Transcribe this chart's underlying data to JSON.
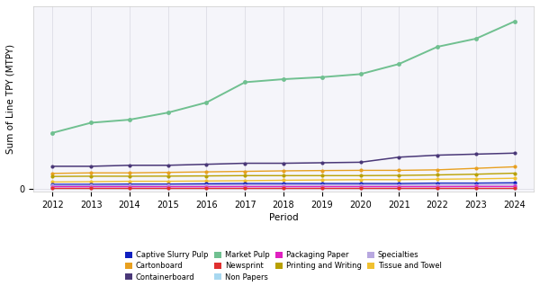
{
  "periods": [
    2012,
    2013,
    2014,
    2015,
    2016,
    2017,
    2018,
    2019,
    2020,
    2021,
    2022,
    2023,
    2024
  ],
  "series": {
    "Market Pulp": {
      "color": "#70c090",
      "values": [
        5.5,
        6.5,
        6.8,
        7.5,
        8.5,
        10.5,
        10.8,
        11.0,
        11.3,
        12.3,
        14.0,
        14.8,
        16.5
      ],
      "linewidth": 1.4,
      "markersize": 3.5,
      "zorder": 5
    },
    "Containerboard": {
      "color": "#4a3878",
      "values": [
        2.2,
        2.2,
        2.3,
        2.3,
        2.4,
        2.5,
        2.5,
        2.55,
        2.6,
        3.1,
        3.3,
        3.4,
        3.5
      ],
      "linewidth": 1.1,
      "markersize": 3,
      "zorder": 4
    },
    "Cartonboard": {
      "color": "#e8a020",
      "values": [
        1.5,
        1.55,
        1.55,
        1.6,
        1.65,
        1.7,
        1.75,
        1.78,
        1.8,
        1.8,
        1.85,
        2.0,
        2.15
      ],
      "linewidth": 1.0,
      "markersize": 3,
      "zorder": 3
    },
    "Tissue and Towel": {
      "color": "#f0c030",
      "values": [
        0.65,
        0.68,
        0.72,
        0.72,
        0.75,
        0.78,
        0.82,
        0.85,
        0.88,
        0.88,
        0.92,
        0.96,
        1.02
      ],
      "linewidth": 1.0,
      "markersize": 3,
      "zorder": 3
    },
    "Printing and Writing": {
      "color": "#b8a000",
      "values": [
        1.2,
        1.22,
        1.22,
        1.23,
        1.25,
        1.28,
        1.28,
        1.28,
        1.28,
        1.3,
        1.35,
        1.42,
        1.52
      ],
      "linewidth": 1.0,
      "markersize": 3,
      "zorder": 3
    },
    "Captive Slurry Pulp": {
      "color": "#1020c0",
      "values": [
        0.42,
        0.42,
        0.44,
        0.44,
        0.47,
        0.5,
        0.5,
        0.5,
        0.5,
        0.5,
        0.54,
        0.54,
        0.57
      ],
      "linewidth": 1.0,
      "markersize": 3,
      "zorder": 3
    },
    "Specialties": {
      "color": "#b8a8e0",
      "values": [
        0.3,
        0.3,
        0.3,
        0.32,
        0.32,
        0.34,
        0.34,
        0.34,
        0.34,
        0.34,
        0.34,
        0.34,
        0.37
      ],
      "linewidth": 1.0,
      "markersize": 3,
      "zorder": 3
    },
    "Packaging Paper": {
      "color": "#e020c0",
      "values": [
        0.18,
        0.18,
        0.18,
        0.18,
        0.18,
        0.19,
        0.19,
        0.19,
        0.19,
        0.19,
        0.19,
        0.2,
        0.2
      ],
      "linewidth": 1.0,
      "markersize": 3,
      "zorder": 3
    },
    "Non Papers": {
      "color": "#a8d8f0",
      "values": [
        0.1,
        0.1,
        0.1,
        0.1,
        0.1,
        0.1,
        0.1,
        0.1,
        0.1,
        0.1,
        0.1,
        0.1,
        0.1
      ],
      "linewidth": 1.0,
      "markersize": 3,
      "zorder": 3
    },
    "Newsprint": {
      "color": "#e03030",
      "values": [
        0.04,
        0.04,
        0.04,
        0.04,
        0.04,
        0.04,
        0.04,
        0.04,
        0.04,
        0.04,
        0.04,
        0.04,
        0.04
      ],
      "linewidth": 1.0,
      "markersize": 3,
      "zorder": 3
    }
  },
  "xlabel": "Period",
  "ylabel": "Sum of Line TPY (MTPY)",
  "ylim": [
    -0.3,
    18
  ],
  "xlim": [
    2011.5,
    2024.5
  ],
  "ytick_zero": 0,
  "grid_color": "#e0e0e8",
  "bg_color": "#ffffff",
  "plot_bg": "#f5f5fa",
  "legend_order": [
    "Captive Slurry Pulp",
    "Cartonboard",
    "Containerboard",
    "Market Pulp",
    "Newsprint",
    "Non Papers",
    "Packaging Paper",
    "Printing and Writing",
    "Specialties",
    "Tissue and Towel"
  ],
  "legend_colors": {
    "Captive Slurry Pulp": "#1020c0",
    "Cartonboard": "#e8a020",
    "Containerboard": "#4a3878",
    "Market Pulp": "#70c090",
    "Newsprint": "#e03030",
    "Non Papers": "#a8d8f0",
    "Packaging Paper": "#e020c0",
    "Printing and Writing": "#b8a000",
    "Specialties": "#b8a8e0",
    "Tissue and Towel": "#f0c030"
  },
  "legend_ncol": 4,
  "legend_fontsize": 6.0,
  "axis_label_fontsize": 7.5,
  "tick_fontsize": 7.0
}
